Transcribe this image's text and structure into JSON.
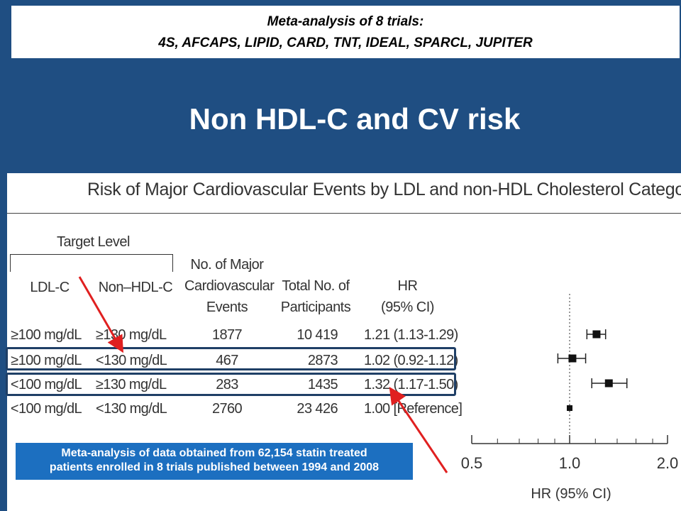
{
  "slide": {
    "header_line1": "Meta-analysis of 8 trials:",
    "header_line2": "4S, AFCAPS, LIPID, CARD, TNT, IDEAL, SPARCL, JUPITER",
    "title": "Non HDL-C and CV risk",
    "note_line1": "Meta-analysis of data obtained from 62,154 statin treated",
    "note_line2": "patients enrolled in 8 trials published between 1994 and 2008",
    "colors": {
      "background": "#1f4e82",
      "note_box": "#1c6fc0",
      "arrow": "#e02020",
      "highlight_box": "#1f3f66"
    }
  },
  "table": {
    "group_header": "Target Level",
    "col_ldl": "LDL-C",
    "col_nonhdl": "Non–HDL-C",
    "col_events": [
      "No. of Major",
      "Cardiovascular",
      "Events"
    ],
    "col_participants": [
      "Total No. of",
      "Participants"
    ],
    "col_hr": [
      "HR",
      "(95% CI)"
    ],
    "rows": [
      {
        "ldl": "≥100 mg/dL",
        "nonhdl": "≥130 mg/dL",
        "events": "1877",
        "participants": "10 419",
        "hr_text": "1.21 (1.13-1.29)"
      },
      {
        "ldl": "≥100 mg/dL",
        "nonhdl": "<130 mg/dL",
        "events": "467",
        "participants": "2873",
        "hr_text": "1.02 (0.92-1.12)"
      },
      {
        "ldl": "<100 mg/dL",
        "nonhdl": "≥130 mg/dL",
        "events": "283",
        "participants": "1435",
        "hr_text": "1.32 (1.17-1.50)"
      },
      {
        "ldl": "<100 mg/dL",
        "nonhdl": "<130 mg/dL",
        "events": "2760",
        "participants": "23 426",
        "hr_text": "1.00 [Reference]"
      }
    ]
  },
  "chart_data": {
    "type": "scatter",
    "title": "Risk of Major Cardiovascular Events by LDL and non-HDL Cholesterol Categories",
    "xlabel": "HR (95% CI)",
    "xscale": "log",
    "xlim": [
      0.5,
      2.0
    ],
    "reference_line": 1.0,
    "xticks_major": [
      "0.5",
      "1.0",
      "2.0"
    ],
    "xticks_minor": [
      0.6,
      0.7,
      0.8,
      0.9,
      1.2,
      1.4,
      1.6,
      1.8
    ],
    "points": [
      {
        "hr": 1.21,
        "lo": 1.13,
        "hi": 1.29
      },
      {
        "hr": 1.02,
        "lo": 0.92,
        "hi": 1.12
      },
      {
        "hr": 1.32,
        "lo": 1.17,
        "hi": 1.5
      },
      {
        "hr": 1.0,
        "lo": null,
        "hi": null
      }
    ]
  }
}
